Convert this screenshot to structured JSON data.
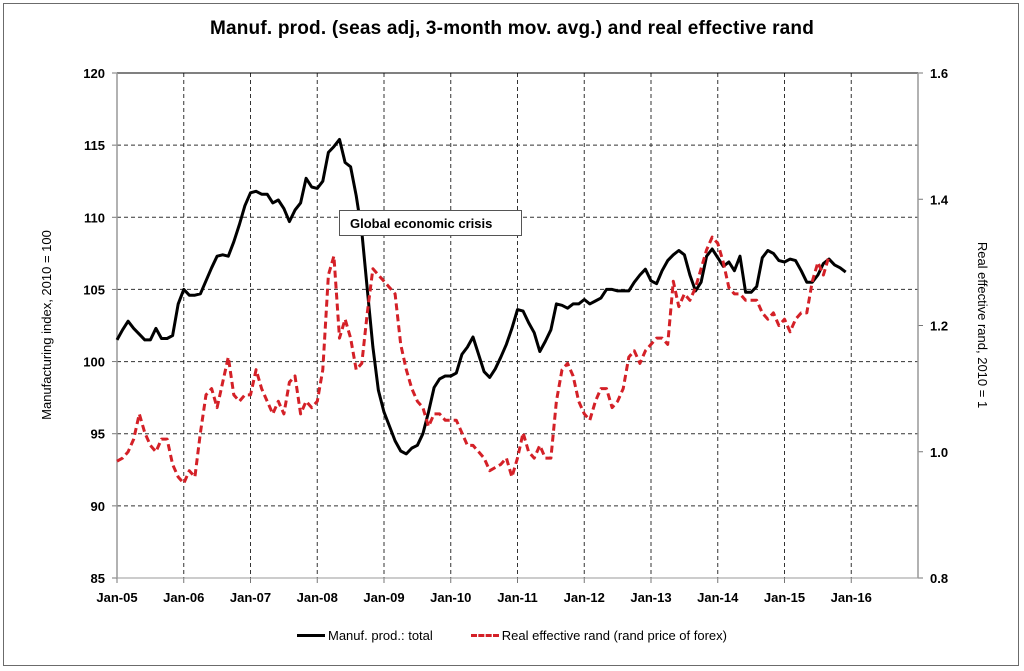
{
  "chart_data": {
    "type": "line",
    "title": "Manuf. prod. (seas adj, 3-month mov. avg.) and real effective rand",
    "xlabel": "",
    "ylabel": "Manufacturing index, 2010 = 100",
    "y2label": "Real effective rand, 2010 = 1",
    "x_ticks": [
      "Jan-05",
      "Jan-06",
      "Jan-07",
      "Jan-08",
      "Jan-09",
      "Jan-10",
      "Jan-11",
      "Jan-12",
      "Jan-13",
      "Jan-14",
      "Jan-15",
      "Jan-16"
    ],
    "x_range": [
      "Jan-05",
      "Jan-17"
    ],
    "y_ticks": [
      "85",
      "90",
      "95",
      "100",
      "105",
      "110",
      "115",
      "120"
    ],
    "ylim": [
      85,
      120
    ],
    "y2_ticks": [
      "0.8",
      "1.0",
      "1.2",
      "1.4",
      "1.6"
    ],
    "y2lim": [
      0.8,
      1.6
    ],
    "grid": true,
    "legend_position": "bottom",
    "annotation": "Global economic crisis",
    "series": [
      {
        "name": "Manuf. prod.: total",
        "axis": "left",
        "color": "#000000",
        "style": "solid",
        "start": "Jan-05",
        "frequency": "monthly",
        "values": [
          101.5,
          102.2,
          102.8,
          102.3,
          101.9,
          101.5,
          101.5,
          102.3,
          101.6,
          101.6,
          101.8,
          104.0,
          105.0,
          104.6,
          104.6,
          104.7,
          105.6,
          106.5,
          107.3,
          107.4,
          107.3,
          108.3,
          109.5,
          110.8,
          111.7,
          111.8,
          111.6,
          111.6,
          111.0,
          111.2,
          110.6,
          109.7,
          110.5,
          111.0,
          112.7,
          112.1,
          112.0,
          112.5,
          114.5,
          114.9,
          115.4,
          113.8,
          113.5,
          111.5,
          109.0,
          105.0,
          101.0,
          98.0,
          96.5,
          95.5,
          94.5,
          93.8,
          93.6,
          94.0,
          94.2,
          95.0,
          96.5,
          98.2,
          98.8,
          99.0,
          99.0,
          99.2,
          100.5,
          101.0,
          101.7,
          100.5,
          99.3,
          98.9,
          99.5,
          100.3,
          101.2,
          102.3,
          103.6,
          103.5,
          102.7,
          102.0,
          100.7,
          101.4,
          102.2,
          104.0,
          103.9,
          103.7,
          104.0,
          104.0,
          104.3,
          104.0,
          104.2,
          104.4,
          105.0,
          105.0,
          104.9,
          104.9,
          104.9,
          105.5,
          106.0,
          106.4,
          105.6,
          105.4,
          106.3,
          107.0,
          107.4,
          107.7,
          107.4,
          106.0,
          104.9,
          105.5,
          107.3,
          107.8,
          107.2,
          106.6,
          106.9,
          106.3,
          107.3,
          104.8,
          104.8,
          105.2,
          107.2,
          107.7,
          107.5,
          107.0,
          106.9,
          107.1,
          107.0,
          106.3,
          105.5,
          105.5,
          106.0,
          106.8,
          107.1,
          106.7,
          106.5,
          106.2
        ]
      },
      {
        "name": "Real effective rand (rand price of forex)",
        "axis": "right",
        "color": "#d42027",
        "style": "dashed",
        "start": "Jan-05",
        "frequency": "monthly",
        "values": [
          0.985,
          0.99,
          1.0,
          1.02,
          1.06,
          1.03,
          1.01,
          1.0,
          1.02,
          1.02,
          0.98,
          0.96,
          0.95,
          0.97,
          0.96,
          1.03,
          1.09,
          1.1,
          1.07,
          1.11,
          1.15,
          1.09,
          1.08,
          1.09,
          1.09,
          1.13,
          1.1,
          1.08,
          1.06,
          1.08,
          1.06,
          1.11,
          1.12,
          1.06,
          1.08,
          1.07,
          1.08,
          1.13,
          1.28,
          1.31,
          1.18,
          1.21,
          1.18,
          1.13,
          1.14,
          1.22,
          1.29,
          1.28,
          1.27,
          1.26,
          1.25,
          1.17,
          1.13,
          1.1,
          1.08,
          1.07,
          1.04,
          1.06,
          1.06,
          1.05,
          1.05,
          1.05,
          1.03,
          1.01,
          1.01,
          1.0,
          0.99,
          0.97,
          0.975,
          0.98,
          0.99,
          0.96,
          0.99,
          1.03,
          1.0,
          0.99,
          1.01,
          0.99,
          0.99,
          1.08,
          1.13,
          1.14,
          1.12,
          1.08,
          1.06,
          1.05,
          1.08,
          1.1,
          1.1,
          1.07,
          1.08,
          1.1,
          1.15,
          1.16,
          1.14,
          1.16,
          1.17,
          1.18,
          1.18,
          1.17,
          1.27,
          1.23,
          1.25,
          1.24,
          1.26,
          1.29,
          1.32,
          1.34,
          1.33,
          1.3,
          1.26,
          1.25,
          1.25,
          1.24,
          1.24,
          1.24,
          1.22,
          1.21,
          1.22,
          1.2,
          1.21,
          1.19,
          1.21,
          1.22,
          1.22,
          1.27,
          1.3,
          1.28,
          1.31
        ]
      }
    ]
  }
}
